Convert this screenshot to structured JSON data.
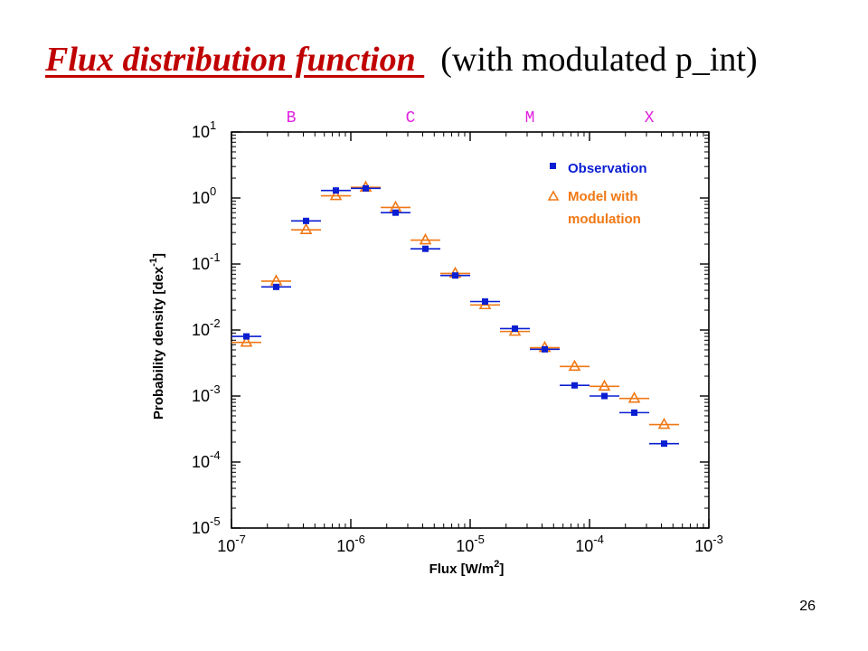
{
  "slide": {
    "title_main": "Flux distribution function ",
    "title_sub": "(with modulated p_int)",
    "page_number": "26"
  },
  "colors": {
    "title": "#c00000",
    "observation": "#0a1ed2",
    "model": "#f07814",
    "class_labels": "#e020e0",
    "axes": "#000000"
  },
  "chart_data": {
    "type": "scatter",
    "x_scale": "log",
    "y_scale": "log",
    "xlim": [
      1e-07,
      0.001
    ],
    "ylim": [
      1e-05,
      10
    ],
    "xlabel_main": "Flux ",
    "xlabel_unit": "[W/m",
    "xlabel_exp": "2",
    "xlabel_close": "]",
    "ylabel_main": "Probability density ",
    "ylabel_unit": "[dex",
    "ylabel_exp": "-1",
    "ylabel_close": "]",
    "x_ticks": [
      {
        "base": "10",
        "exp": "-7"
      },
      {
        "base": "10",
        "exp": "-6"
      },
      {
        "base": "10",
        "exp": "-5"
      },
      {
        "base": "10",
        "exp": "-4"
      },
      {
        "base": "10",
        "exp": "-3"
      }
    ],
    "y_ticks": [
      {
        "base": "10",
        "exp": "1"
      },
      {
        "base": "10",
        "exp": "0"
      },
      {
        "base": "10",
        "exp": "-1"
      },
      {
        "base": "10",
        "exp": "-2"
      },
      {
        "base": "10",
        "exp": "-3"
      },
      {
        "base": "10",
        "exp": "-4"
      },
      {
        "base": "10",
        "exp": "-5"
      }
    ],
    "class_labels": [
      "B",
      "C",
      "M",
      "X"
    ],
    "legend_position": "top-right",
    "bins_log_flux": [
      [
        -7.0,
        -6.75
      ],
      [
        -6.75,
        -6.5
      ],
      [
        -6.5,
        -6.25
      ],
      [
        -6.25,
        -6.0
      ],
      [
        -6.0,
        -5.75
      ],
      [
        -5.75,
        -5.5
      ],
      [
        -5.5,
        -5.25
      ],
      [
        -5.25,
        -5.0
      ],
      [
        -5.0,
        -4.75
      ],
      [
        -4.75,
        -4.5
      ],
      [
        -4.5,
        -4.25
      ],
      [
        -4.25,
        -4.0
      ],
      [
        -4.0,
        -3.75
      ],
      [
        -3.75,
        -3.5
      ],
      [
        -3.5,
        -3.25
      ]
    ],
    "series": [
      {
        "name": "Observation",
        "marker": "filled-square",
        "values": [
          0.008,
          0.045,
          0.45,
          1.3,
          1.4,
          0.6,
          0.17,
          0.067,
          0.027,
          0.0105,
          0.0051,
          0.00145,
          0.001,
          0.00056,
          0.00019
        ]
      },
      {
        "name": "Model with modulation",
        "marker": "open-triangle",
        "values": [
          0.0065,
          0.055,
          0.33,
          1.08,
          1.45,
          0.72,
          0.23,
          0.072,
          0.024,
          0.0095,
          0.0054,
          0.0028,
          0.0014,
          0.00092,
          0.00037
        ]
      }
    ]
  }
}
